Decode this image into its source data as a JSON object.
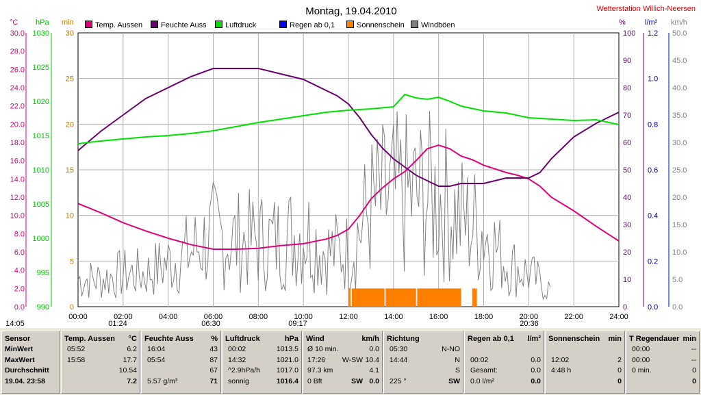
{
  "title": "Montag, 19.04.2010",
  "station": "Wetterstation Willich-Neersen",
  "colors": {
    "temp": "#e0007a",
    "hum": "#6a0070",
    "press": "#00e000",
    "rain": "#0000ff",
    "sun": "#ff8000",
    "wind": "#808080",
    "axis_temp": "#e0007a",
    "axis_press": "#00c000",
    "axis_min": "#c08000",
    "axis_pct": "#6a0070",
    "axis_rain": "#0000c0",
    "axis_kmh": "#808080"
  },
  "legend": [
    {
      "label": "Temp. Aussen",
      "color": "#e0007a"
    },
    {
      "label": "Feuchte Auss",
      "color": "#6a0070"
    },
    {
      "label": "Luftdruck",
      "color": "#00e000"
    },
    {
      "label": "Regen ab 0,1",
      "color": "#0000ff"
    },
    {
      "label": "Sonnenschein",
      "color": "#ff8000"
    },
    {
      "label": "Windböen",
      "color": "#808080"
    }
  ],
  "axes": {
    "temp_unit": "°C",
    "press_unit": "hPa",
    "min_unit": "min",
    "pct_unit": "%",
    "rain_unit": "l/m²",
    "kmh_unit": "km/h",
    "temp_ticks": [
      "30.0",
      "28.0",
      "26.0",
      "24.0",
      "22.0",
      "20.0",
      "18.0",
      "16.0",
      "14.0",
      "12.0",
      "10.0",
      "8.0",
      "6.0",
      "4.0",
      "2.0",
      "0.0"
    ],
    "press_ticks": [
      "1030",
      "1025",
      "1020",
      "1015",
      "1010",
      "1005",
      "1000",
      "995",
      "990"
    ],
    "min_ticks": [
      "30",
      "25",
      "20",
      "15",
      "10",
      "5",
      "0"
    ],
    "pct_ticks": [
      "100",
      "90",
      "80",
      "70",
      "60",
      "50",
      "40",
      "30",
      "20",
      "10",
      "0"
    ],
    "rain_ticks": [
      "1.2",
      "1.0",
      "0.8",
      "0.6",
      "0.4",
      "0.2",
      "0.0"
    ],
    "kmh_ticks": [
      "50.0",
      "45.0",
      "40.0",
      "35.0",
      "30.0",
      "25.0",
      "20.0",
      "15.0",
      "10.0",
      "5.0",
      "0.0"
    ],
    "x_ticks": [
      "00:00",
      "02:00",
      "04:00",
      "06:00",
      "08:00",
      "10:00",
      "12:00",
      "14:00",
      "16:00",
      "18:00",
      "20:00",
      "22:00",
      "24:00"
    ]
  },
  "markers": [
    "14:05",
    "01:24",
    "06:30",
    "09:17",
    "20:36"
  ],
  "chart_data": {
    "type": "line",
    "title": "Montag, 19.04.2010",
    "x_unit": "hours",
    "xlim": [
      0,
      24
    ],
    "series": [
      {
        "name": "Temp. Aussen",
        "unit": "°C",
        "ylim": [
          0,
          30
        ],
        "x": [
          0,
          1,
          2,
          3,
          4,
          5,
          6,
          7,
          8,
          9,
          10,
          11,
          11.5,
          12,
          12.5,
          13,
          13.5,
          14,
          14.5,
          15,
          15.5,
          16,
          16.5,
          17,
          17.5,
          18,
          18.5,
          19,
          19.5,
          20,
          20.5,
          21,
          22,
          23,
          24
        ],
        "y": [
          11.3,
          10.3,
          9.2,
          8.3,
          7.5,
          6.8,
          6.3,
          6.3,
          6.4,
          6.7,
          6.9,
          7.4,
          7.8,
          8.5,
          10.0,
          11.8,
          13.0,
          14.0,
          14.8,
          16.0,
          17.3,
          17.7,
          17.3,
          16.5,
          16.1,
          15.5,
          15.1,
          14.7,
          14.4,
          14.0,
          13.2,
          12.0,
          10.5,
          8.8,
          7.2
        ]
      },
      {
        "name": "Feuchte Auss",
        "unit": "%",
        "ylim": [
          0,
          100
        ],
        "x": [
          0,
          1,
          2,
          3,
          4,
          5,
          6,
          7,
          8,
          9,
          10,
          11,
          11.5,
          12,
          12.5,
          13,
          13.5,
          14,
          14.5,
          15,
          15.5,
          16,
          16.5,
          17,
          17.5,
          18,
          19,
          20,
          20.5,
          21,
          22,
          23,
          24
        ],
        "y": [
          57,
          64,
          70,
          76,
          80,
          84,
          87,
          87,
          87,
          85,
          83,
          79,
          77,
          74,
          69,
          63,
          58,
          54,
          51,
          48,
          46,
          44,
          44,
          45,
          45,
          45,
          47,
          47,
          49,
          54,
          62,
          67,
          71
        ]
      },
      {
        "name": "Luftdruck",
        "unit": "hPa",
        "ylim": [
          990,
          1030
        ],
        "x": [
          0,
          1,
          2,
          3,
          4,
          5,
          6,
          7,
          8,
          9,
          10,
          11,
          12,
          13,
          14,
          14.5,
          15,
          15.5,
          16,
          16.5,
          17,
          18,
          19,
          20,
          21,
          22,
          23,
          24
        ],
        "y": [
          1013.8,
          1014.2,
          1014.5,
          1014.8,
          1015.0,
          1015.3,
          1015.7,
          1016.3,
          1016.9,
          1017.4,
          1017.9,
          1018.4,
          1018.7,
          1018.9,
          1019.2,
          1021.0,
          1020.5,
          1020.3,
          1020.6,
          1020.0,
          1019.3,
          1018.6,
          1018.3,
          1017.6,
          1017.4,
          1017.2,
          1017.3,
          1016.6
        ]
      },
      {
        "name": "Sonnenschein",
        "unit": "min",
        "ylim": [
          0,
          30
        ],
        "type": "bar",
        "intervals": [
          [
            12.0,
            12.1
          ],
          [
            12.15,
            13.6
          ],
          [
            13.65,
            15.0
          ],
          [
            15.05,
            17.0
          ],
          [
            17.5,
            17.7
          ]
        ],
        "value": 2
      },
      {
        "name": "Windböen",
        "unit": "km/h",
        "ylim": [
          0,
          50
        ],
        "type": "line",
        "x": [
          0,
          1,
          2,
          3,
          4,
          5,
          6,
          7,
          8,
          9,
          10,
          11,
          12,
          13,
          14,
          15,
          16,
          17,
          18,
          19,
          20,
          21
        ],
        "y": [
          5,
          5,
          6,
          6,
          8,
          10,
          13,
          12,
          12,
          12,
          14,
          10,
          10,
          18,
          20,
          20,
          20,
          16,
          14,
          8,
          6,
          3
        ]
      }
    ]
  },
  "table": {
    "sensor": {
      "header": "Sensor",
      "rows": [
        "MinWert",
        "MaxWert",
        "Durchschnitt",
        "19.04. 23:58"
      ]
    },
    "temp": {
      "header": "Temp. Aussen",
      "unit": "°C",
      "rows": [
        [
          "05:52",
          "6.2"
        ],
        [
          "15:58",
          "17.7"
        ],
        [
          "",
          "10.54"
        ],
        [
          "",
          "7.2"
        ]
      ]
    },
    "hum": {
      "header": "Feuchte Auss",
      "unit": "%",
      "rows": [
        [
          "16:04",
          "43"
        ],
        [
          "05:54",
          "87"
        ],
        [
          "",
          "67"
        ],
        [
          "5.57 g/m³",
          "71"
        ]
      ]
    },
    "press": {
      "header": "Luftdruck",
      "unit": "hPa",
      "rows": [
        [
          "00:02",
          "1013.5"
        ],
        [
          "14:32",
          "1021.0"
        ],
        [
          "^2.9hPa/h",
          "1017.0"
        ],
        [
          "sonnig",
          "1016.4"
        ]
      ]
    },
    "wind": {
      "header": "Wind",
      "unit": "km/h",
      "rows": [
        [
          "Ø 10 min.",
          "",
          "0.0"
        ],
        [
          "17:26",
          "W-SW",
          "10.4"
        ],
        [
          "97.3 km",
          "",
          "4.1"
        ],
        [
          "0 Bft",
          "SW",
          "0.0"
        ]
      ]
    },
    "dir": {
      "header": "Richtung",
      "rows": [
        [
          "05:30",
          "N-NO"
        ],
        [
          "14:44",
          "N"
        ],
        [
          "",
          "S"
        ],
        [
          "225 °",
          "SW"
        ]
      ]
    },
    "rain": {
      "header": "Regen ab 0,1",
      "unit": "l/m²",
      "rows": [
        [
          "",
          ""
        ],
        [
          "00:02",
          "0.0"
        ],
        [
          "Gesamt:",
          "0.0"
        ],
        [
          "0.0 l/m²",
          "0.0"
        ]
      ]
    },
    "sun": {
      "header": "Sonnenschein",
      "unit": "min",
      "rows": [
        [
          "",
          ""
        ],
        [
          "12:02",
          "2"
        ],
        [
          "4:48 h",
          "0"
        ],
        [
          "",
          "0"
        ]
      ]
    },
    "rdauer": {
      "header": "T Regendauer",
      "unit": "min",
      "rows": [
        [
          "00:00",
          "--"
        ],
        [
          "00:00",
          "--"
        ],
        [
          "0 min.",
          "0"
        ],
        [
          "",
          "0"
        ]
      ]
    }
  }
}
